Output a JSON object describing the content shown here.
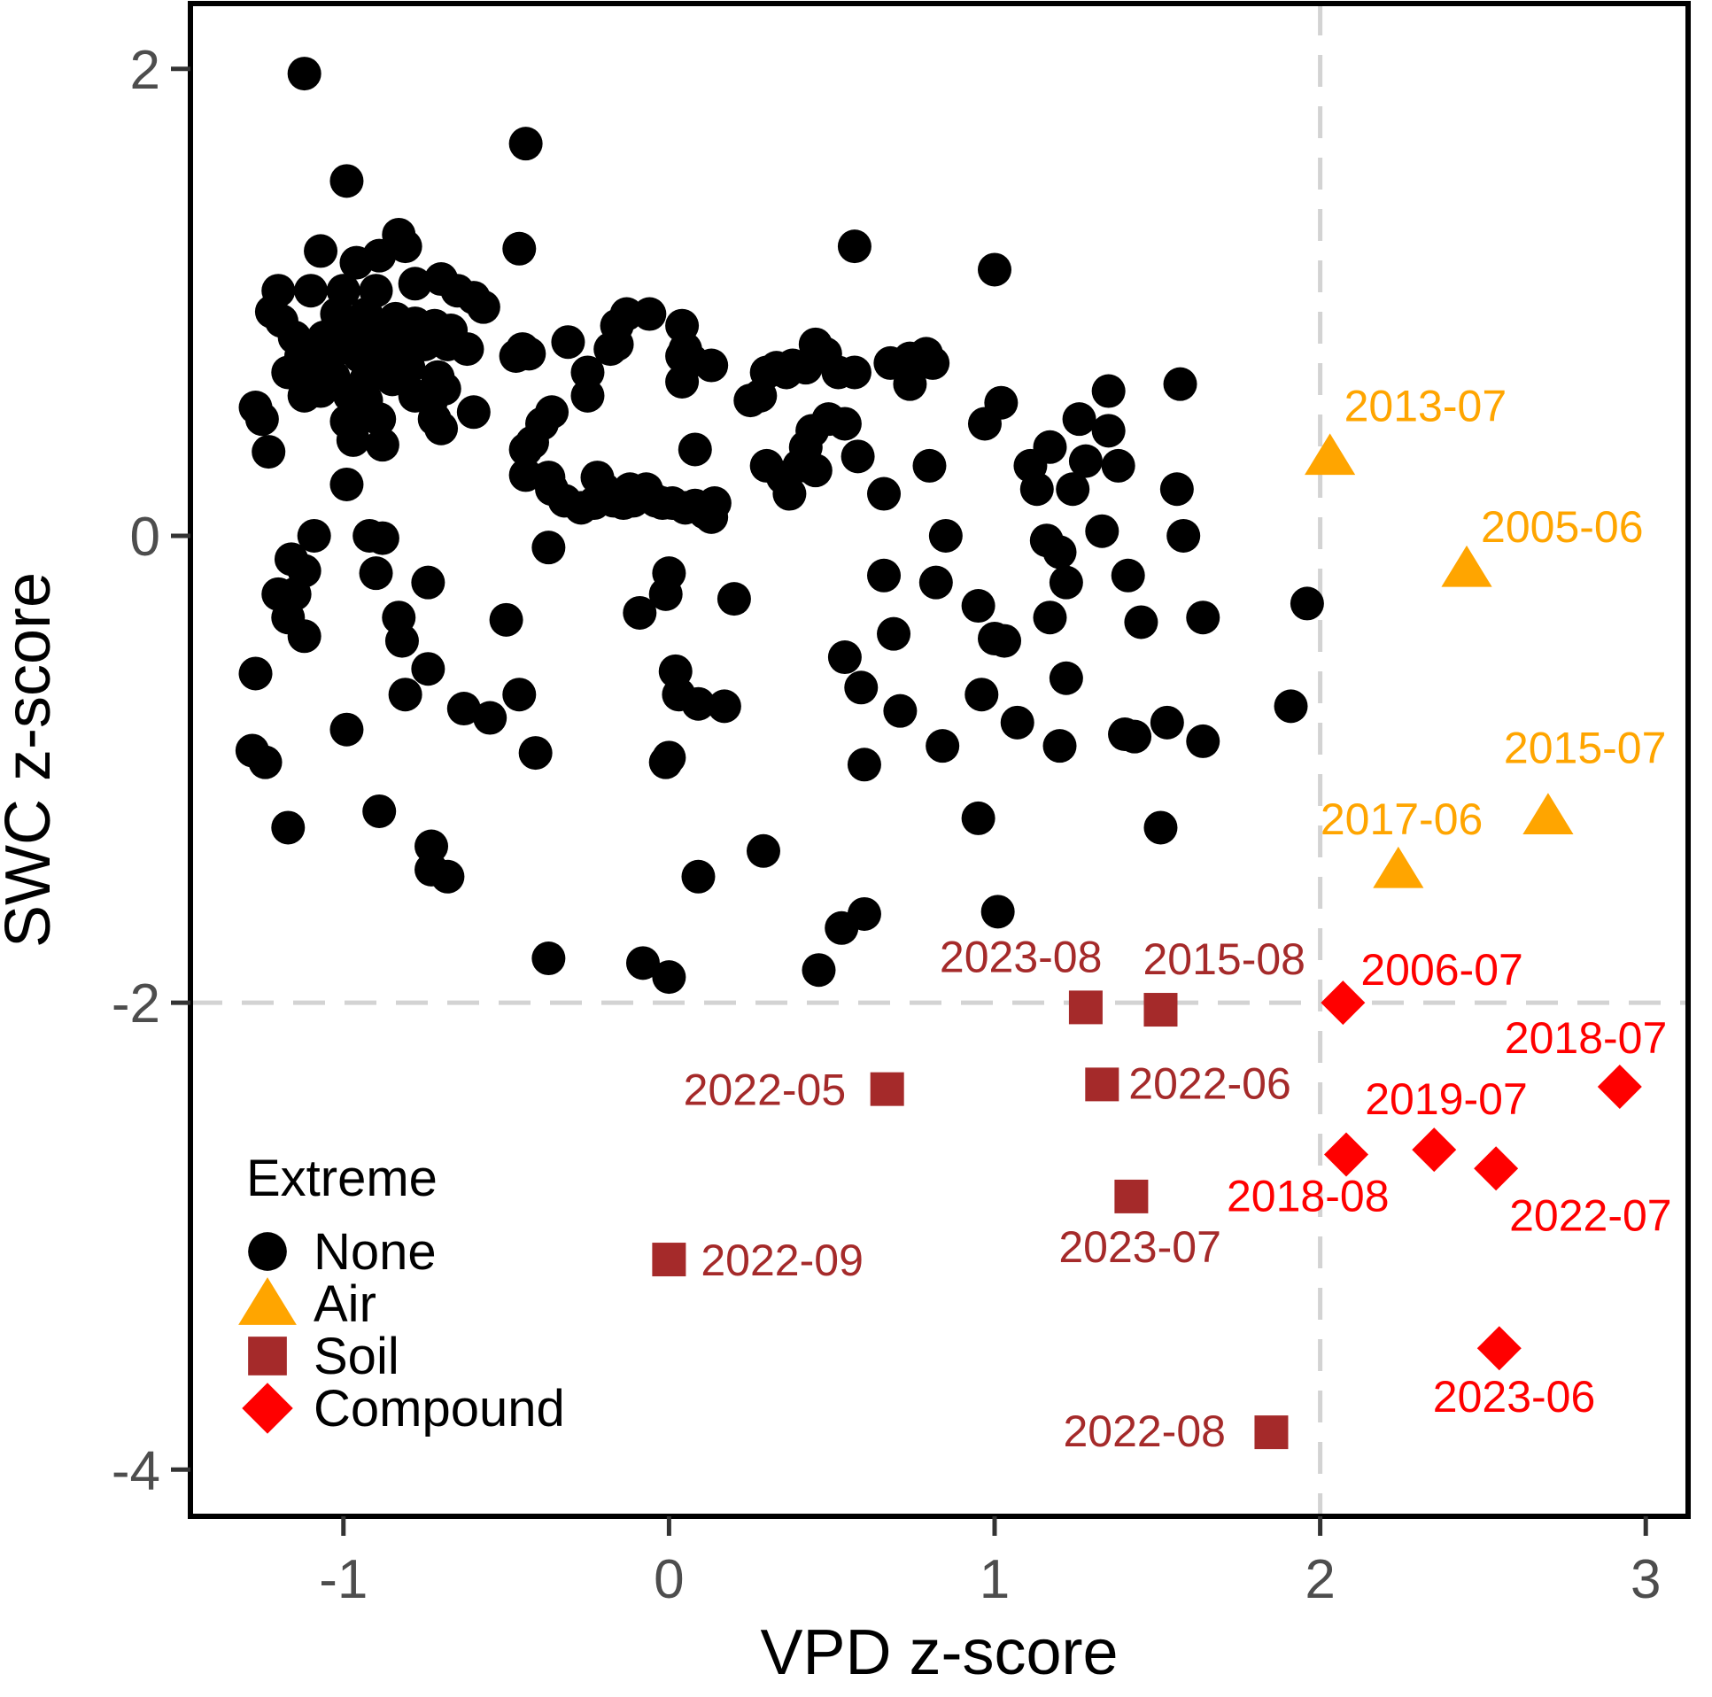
{
  "chart_data": {
    "type": "scatter",
    "xlabel": "VPD z-score",
    "ylabel": "SWC z-score",
    "xlim": [
      -1.47,
      3.13
    ],
    "ylim": [
      -4.2,
      2.28
    ],
    "x_ticks": [
      -1,
      0,
      1,
      2,
      3
    ],
    "y_ticks": [
      -4,
      -2,
      0,
      2
    ],
    "x_tick_labels": [
      "-1",
      "0",
      "1",
      "2",
      "3"
    ],
    "y_tick_labels": [
      "-4",
      "-2",
      "0",
      "2"
    ],
    "grid": false,
    "reference_lines": [
      {
        "axis": "x",
        "value": 2,
        "style": "dashed",
        "color": "#d3d3d3"
      },
      {
        "axis": "y",
        "value": -2,
        "style": "dashed",
        "color": "#d3d3d3"
      }
    ],
    "legend": {
      "title": "Extreme",
      "position": "bottom-left",
      "entries": [
        {
          "label": "None",
          "shape": "circle",
          "color": "#000000"
        },
        {
          "label": "Air",
          "shape": "triangle",
          "color": "#FFA500"
        },
        {
          "label": "Soil",
          "shape": "square",
          "color": "#A52A2A"
        },
        {
          "label": "Compound",
          "shape": "diamond",
          "color": "#FF0000"
        }
      ]
    },
    "series": [
      {
        "name": "None",
        "shape": "circle",
        "color": "#000000",
        "points": [
          [
            -1.12,
            1.98
          ],
          [
            -0.44,
            1.68
          ],
          [
            -0.99,
            1.52
          ],
          [
            -0.46,
            1.23
          ],
          [
            -1.07,
            1.22
          ],
          [
            -0.83,
            1.29
          ],
          [
            -0.81,
            1.24
          ],
          [
            -0.89,
            1.2
          ],
          [
            -0.96,
            1.17
          ],
          [
            -1.2,
            1.05
          ],
          [
            -1.1,
            1.05
          ],
          [
            -1.0,
            1.05
          ],
          [
            -0.9,
            1.05
          ],
          [
            -0.78,
            1.08
          ],
          [
            -0.7,
            1.1
          ],
          [
            -0.65,
            1.05
          ],
          [
            -0.6,
            1.02
          ],
          [
            -0.57,
            0.98
          ],
          [
            -1.22,
            0.96
          ],
          [
            -1.19,
            0.92
          ],
          [
            -1.02,
            0.95
          ],
          [
            -0.93,
            0.95
          ],
          [
            -0.84,
            0.93
          ],
          [
            -0.78,
            0.91
          ],
          [
            -0.72,
            0.9
          ],
          [
            -0.67,
            0.88
          ],
          [
            -1.15,
            0.85
          ],
          [
            -1.06,
            0.85
          ],
          [
            -0.97,
            0.85
          ],
          [
            -0.88,
            0.85
          ],
          [
            -0.82,
            0.85
          ],
          [
            -0.75,
            0.82
          ],
          [
            -0.68,
            0.82
          ],
          [
            -0.62,
            0.8
          ],
          [
            -1.13,
            0.77
          ],
          [
            -1.04,
            0.77
          ],
          [
            -0.95,
            0.77
          ],
          [
            -0.87,
            0.75
          ],
          [
            -0.8,
            0.72
          ],
          [
            -0.45,
            0.8
          ],
          [
            -0.43,
            0.78
          ],
          [
            -0.47,
            0.77
          ],
          [
            -1.17,
            0.7
          ],
          [
            -1.1,
            0.7
          ],
          [
            -1.03,
            0.68
          ],
          [
            -0.93,
            0.67
          ],
          [
            -0.85,
            0.67
          ],
          [
            -0.71,
            0.68
          ],
          [
            -1.12,
            0.6
          ],
          [
            -1.07,
            0.62
          ],
          [
            -0.98,
            0.6
          ],
          [
            -0.93,
            0.58
          ],
          [
            -0.78,
            0.6
          ],
          [
            -0.73,
            0.58
          ],
          [
            -0.69,
            0.63
          ],
          [
            -1.27,
            0.55
          ],
          [
            -1.25,
            0.5
          ],
          [
            -0.6,
            0.53
          ],
          [
            -0.99,
            0.49
          ],
          [
            -0.94,
            0.51
          ],
          [
            -0.89,
            0.5
          ],
          [
            -0.72,
            0.5
          ],
          [
            -0.7,
            0.46
          ],
          [
            -1.23,
            0.36
          ],
          [
            -0.97,
            0.41
          ],
          [
            -0.88,
            0.39
          ],
          [
            -0.44,
            0.37
          ],
          [
            -0.42,
            0.4
          ],
          [
            -0.39,
            0.48
          ],
          [
            -0.36,
            0.53
          ],
          [
            -0.99,
            0.22
          ],
          [
            -0.44,
            0.26
          ],
          [
            -0.37,
            0.25
          ],
          [
            -0.13,
            0.95
          ],
          [
            -0.16,
            0.9
          ],
          [
            -0.06,
            0.95
          ],
          [
            -0.16,
            0.82
          ],
          [
            -0.18,
            0.8
          ],
          [
            0.04,
            0.9
          ],
          [
            0.05,
            0.8
          ],
          [
            0.04,
            0.77
          ],
          [
            0.07,
            0.75
          ],
          [
            0.13,
            0.73
          ],
          [
            0.04,
            0.66
          ],
          [
            -0.31,
            0.83
          ],
          [
            -0.25,
            0.7
          ],
          [
            -0.25,
            0.6
          ],
          [
            0.25,
            0.58
          ],
          [
            0.28,
            0.6
          ],
          [
            0.3,
            0.7
          ],
          [
            0.33,
            0.72
          ],
          [
            0.36,
            0.7
          ],
          [
            0.38,
            0.73
          ],
          [
            0.42,
            0.72
          ],
          [
            0.48,
            0.78
          ],
          [
            0.45,
            0.82
          ],
          [
            0.52,
            0.7
          ],
          [
            0.57,
            0.7
          ],
          [
            0.3,
            0.3
          ],
          [
            0.35,
            0.25
          ],
          [
            0.37,
            0.18
          ],
          [
            0.4,
            0.3
          ],
          [
            0.42,
            0.38
          ],
          [
            0.44,
            0.45
          ],
          [
            0.49,
            0.5
          ],
          [
            0.54,
            0.48
          ],
          [
            0.58,
            0.34
          ],
          [
            0.45,
            0.28
          ],
          [
            -0.36,
            0.2
          ],
          [
            -0.32,
            0.15
          ],
          [
            -0.27,
            0.12
          ],
          [
            -0.23,
            0.14
          ],
          [
            -0.22,
            0.25
          ],
          [
            -0.2,
            0.2
          ],
          [
            -0.17,
            0.15
          ],
          [
            -0.14,
            0.14
          ],
          [
            -0.12,
            0.2
          ],
          [
            -0.11,
            0.15
          ],
          [
            -0.07,
            0.2
          ],
          [
            -0.04,
            0.15
          ],
          [
            -0.02,
            0.14
          ],
          [
            0.01,
            0.14
          ],
          [
            0.05,
            0.12
          ],
          [
            0.08,
            0.13
          ],
          [
            0.11,
            0.1
          ],
          [
            0.13,
            0.08
          ],
          [
            0.08,
            0.37
          ],
          [
            -1.27,
            -0.59
          ],
          [
            -0.92,
            0.0
          ],
          [
            -0.88,
            -0.01
          ],
          [
            -1.2,
            -0.25
          ],
          [
            -1.16,
            -0.1
          ],
          [
            -1.12,
            -0.15
          ],
          [
            -1.15,
            -0.25
          ],
          [
            -1.17,
            -0.35
          ],
          [
            -1.12,
            -0.43
          ],
          [
            -1.09,
            0.0
          ],
          [
            -0.9,
            -0.16
          ],
          [
            -0.83,
            -0.35
          ],
          [
            -0.82,
            -0.45
          ],
          [
            -0.74,
            -0.2
          ],
          [
            -0.5,
            -0.36
          ],
          [
            -0.37,
            -0.05
          ],
          [
            -0.81,
            -0.68
          ],
          [
            -0.74,
            -0.57
          ],
          [
            -0.63,
            -0.74
          ],
          [
            -0.55,
            -0.78
          ],
          [
            -0.46,
            -0.68
          ],
          [
            -0.41,
            -0.93
          ],
          [
            -1.28,
            -0.92
          ],
          [
            -1.24,
            -0.97
          ],
          [
            -1.17,
            -1.25
          ],
          [
            -0.99,
            -0.83
          ],
          [
            -0.89,
            -1.18
          ],
          [
            -0.73,
            -1.33
          ],
          [
            -0.73,
            -1.43
          ],
          [
            -0.68,
            -1.46
          ],
          [
            -0.37,
            -1.81
          ],
          [
            -0.08,
            -1.83
          ],
          [
            0.0,
            -1.89
          ],
          [
            0.0,
            -0.95
          ],
          [
            -0.01,
            -0.97
          ],
          [
            -0.09,
            -0.33
          ],
          [
            0.0,
            -0.16
          ],
          [
            -0.01,
            -0.25
          ],
          [
            0.02,
            -0.58
          ],
          [
            0.03,
            -0.68
          ],
          [
            0.09,
            -0.72
          ],
          [
            0.17,
            -0.73
          ],
          [
            0.2,
            -0.27
          ],
          [
            0.09,
            -1.46
          ],
          [
            0.29,
            -1.35
          ],
          [
            0.46,
            -1.86
          ],
          [
            0.53,
            -1.68
          ],
          [
            0.6,
            -1.62
          ],
          [
            0.54,
            -0.52
          ],
          [
            0.59,
            -0.65
          ],
          [
            0.6,
            -0.98
          ],
          [
            0.66,
            -0.17
          ],
          [
            0.69,
            -0.42
          ],
          [
            0.71,
            -0.75
          ],
          [
            0.74,
            0.65
          ],
          [
            0.8,
            0.3
          ],
          [
            0.85,
            0.0
          ],
          [
            0.82,
            -0.2
          ],
          [
            0.84,
            -0.9
          ],
          [
            0.95,
            -0.3
          ],
          [
            0.96,
            -0.68
          ],
          [
            0.95,
            -1.21
          ],
          [
            1.0,
            -0.44
          ],
          [
            1.03,
            -0.45
          ],
          [
            1.01,
            -1.61
          ],
          [
            1.07,
            -0.8
          ],
          [
            1.11,
            0.3
          ],
          [
            1.13,
            0.2
          ],
          [
            1.16,
            -0.02
          ],
          [
            1.17,
            -0.35
          ],
          [
            1.17,
            0.38
          ],
          [
            1.2,
            -0.07
          ],
          [
            1.22,
            -0.2
          ],
          [
            1.2,
            -0.9
          ],
          [
            1.22,
            -0.61
          ],
          [
            1.24,
            0.2
          ],
          [
            1.26,
            0.5
          ],
          [
            1.28,
            0.32
          ],
          [
            1.33,
            0.02
          ],
          [
            1.35,
            0.45
          ],
          [
            1.35,
            0.62
          ],
          [
            1.38,
            0.3
          ],
          [
            1.4,
            -0.85
          ],
          [
            1.43,
            -0.86
          ],
          [
            1.41,
            -0.17
          ],
          [
            1.45,
            -0.37
          ],
          [
            1.53,
            -0.8
          ],
          [
            1.51,
            -1.25
          ],
          [
            1.56,
            0.2
          ],
          [
            1.58,
            0.0
          ],
          [
            1.57,
            0.65
          ],
          [
            1.64,
            -0.35
          ],
          [
            1.64,
            -0.88
          ],
          [
            1.91,
            -0.73
          ],
          [
            1.96,
            -0.29
          ],
          [
            0.57,
            1.24
          ],
          [
            1.0,
            1.14
          ],
          [
            1.02,
            0.57
          ],
          [
            0.97,
            0.48
          ],
          [
            0.79,
            0.78
          ],
          [
            0.81,
            0.74
          ],
          [
            0.74,
            0.76
          ],
          [
            0.68,
            0.74
          ],
          [
            0.66,
            0.18
          ],
          [
            0.14,
            0.14
          ]
        ]
      },
      {
        "name": "Air",
        "shape": "triangle",
        "color": "#FFA500",
        "points": [
          [
            2.03,
            0.34
          ],
          [
            2.45,
            -0.14
          ],
          [
            2.7,
            -1.2
          ],
          [
            2.24,
            -1.43
          ]
        ],
        "labels": [
          "2013-07",
          "2005-06",
          "2015-07",
          "2017-06"
        ]
      },
      {
        "name": "Soil",
        "shape": "square",
        "color": "#A52A2A",
        "points": [
          [
            1.28,
            -2.02
          ],
          [
            1.51,
            -2.03
          ],
          [
            0.67,
            -2.37
          ],
          [
            1.33,
            -2.35
          ],
          [
            1.42,
            -2.83
          ],
          [
            0.0,
            -3.1
          ],
          [
            1.85,
            -3.84
          ]
        ],
        "labels": [
          "2023-08",
          "2015-08",
          "2022-05",
          "2022-06",
          "2023-07",
          "2022-09",
          "2022-08"
        ]
      },
      {
        "name": "Compound",
        "shape": "diamond",
        "color": "#FF0000",
        "points": [
          [
            2.07,
            -2.0
          ],
          [
            2.92,
            -2.36
          ],
          [
            2.08,
            -2.65
          ],
          [
            2.35,
            -2.63
          ],
          [
            2.54,
            -2.71
          ],
          [
            2.55,
            -3.48
          ]
        ],
        "labels": [
          "2006-07",
          "2018-07",
          "2018-08",
          "2019-07",
          "2022-07",
          "2023-06"
        ]
      }
    ]
  }
}
